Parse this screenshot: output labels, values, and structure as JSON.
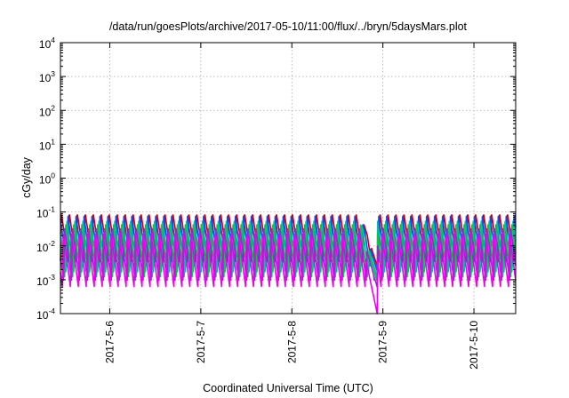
{
  "chart_data": {
    "type": "line",
    "title": "/data/run/goesPlots/archive/2017-05-10/11:00/flux/../bryn/5daysMars.plot",
    "xlabel": "Coordinated Universal Time (UTC)",
    "ylabel": "cGy/day",
    "yscale": "log",
    "ylim": [
      0.0001,
      10000
    ],
    "y_ticks": [
      {
        "base": "10",
        "exp": "-4"
      },
      {
        "base": "10",
        "exp": "-3"
      },
      {
        "base": "10",
        "exp": "-2"
      },
      {
        "base": "10",
        "exp": "-1"
      },
      {
        "base": "10",
        "exp": "0"
      },
      {
        "base": "10",
        "exp": "1"
      },
      {
        "base": "10",
        "exp": "2"
      },
      {
        "base": "10",
        "exp": "3"
      },
      {
        "base": "10",
        "exp": "4"
      }
    ],
    "xlim": [
      "2017-05-05T11:00",
      "2017-05-10T11:00"
    ],
    "x_ticks": [
      "2017-5-6",
      "2017-5-7",
      "2017-5-8",
      "2017-5-9",
      "2017-5-10"
    ],
    "grid": true,
    "series": [
      {
        "color": "#cc0000",
        "peak": 0.095,
        "trough": 0.0035,
        "period_hours": 2.1,
        "phase": 0.0,
        "dip": {
          "start": "2017-05-08T18:00",
          "end": "2017-05-08T22:30",
          "min": 0.0025
        }
      },
      {
        "color": "#2244ee",
        "peak": 0.075,
        "trough": 0.0022,
        "period_hours": 2.1,
        "phase": 0.15,
        "dip": {
          "start": "2017-05-08T18:00",
          "end": "2017-05-08T22:30",
          "min": 0.0018
        }
      },
      {
        "color": "#00bbbb",
        "peak": 0.055,
        "trough": 0.0015,
        "period_hours": 2.1,
        "phase": 0.3,
        "dip": {
          "start": "2017-05-08T18:00",
          "end": "2017-05-08T22:30",
          "min": 0.0012
        }
      },
      {
        "color": "#00cc44",
        "peak": 0.045,
        "trough": 0.0011,
        "period_hours": 2.1,
        "phase": 0.45,
        "dip": {
          "start": "2017-05-08T18:00",
          "end": "2017-05-08T22:30",
          "min": 0.0009
        }
      },
      {
        "color": "#8833cc",
        "peak": 0.035,
        "trough": 0.0009,
        "period_hours": 2.1,
        "phase": 0.6,
        "dip": {
          "start": "2017-05-08T18:00",
          "end": "2017-05-08T22:30",
          "min": 0.0006
        }
      },
      {
        "color": "#ee00ee",
        "peak": 0.025,
        "trough": 0.0006,
        "period_hours": 2.1,
        "phase": 0.75,
        "dip": {
          "start": "2017-05-08T18:00",
          "end": "2017-05-08T22:30",
          "min": 0.0001
        }
      }
    ]
  }
}
